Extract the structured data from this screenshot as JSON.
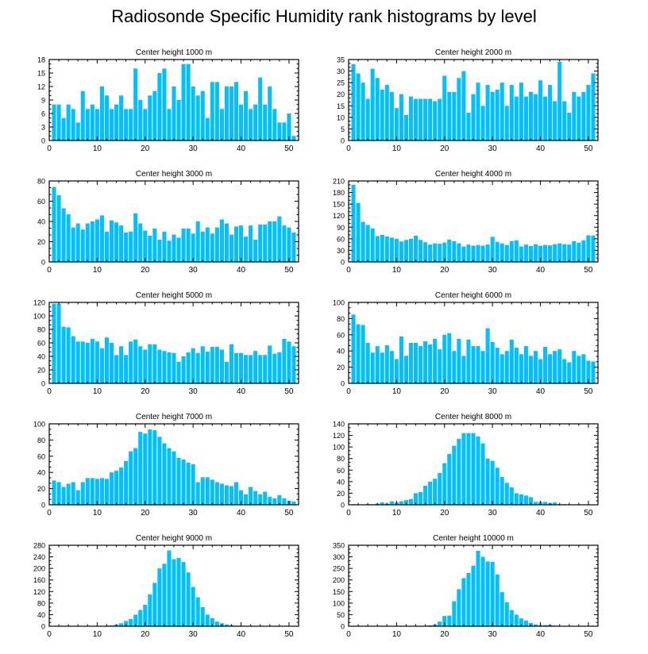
{
  "page_title": "Radiosonde Specific Humidity rank histograms by level",
  "colors": {
    "bar": "#00c0ff",
    "axis": "#000000",
    "background": "#ffffff"
  },
  "chart_data": [
    {
      "type": "bar",
      "title": "Center height 1000 m",
      "x": [
        1,
        2,
        3,
        4,
        5,
        6,
        7,
        8,
        9,
        10,
        11,
        12,
        13,
        14,
        15,
        16,
        17,
        18,
        19,
        20,
        21,
        22,
        23,
        24,
        25,
        26,
        27,
        28,
        29,
        30,
        31,
        32,
        33,
        34,
        35,
        36,
        37,
        38,
        39,
        40,
        41,
        42,
        43,
        44,
        45,
        46,
        47,
        48,
        49,
        50,
        51
      ],
      "values": [
        8,
        8,
        5,
        8,
        7,
        4,
        11,
        7,
        8,
        7,
        12,
        10,
        7,
        8,
        10,
        7,
        7,
        16,
        9,
        7,
        10,
        11,
        15,
        16,
        7,
        12,
        9,
        17,
        17,
        12,
        10,
        11,
        5,
        13,
        13,
        7,
        12,
        12,
        13,
        8,
        11,
        7,
        8,
        14,
        8,
        12,
        7,
        4,
        4,
        6,
        1
      ],
      "xlim": [
        0,
        52
      ],
      "ylim": [
        0,
        18
      ],
      "xticks": [
        0,
        10,
        20,
        30,
        40,
        50
      ],
      "yticks": [
        0,
        3,
        6,
        9,
        12,
        15,
        18
      ]
    },
    {
      "type": "bar",
      "title": "Center height 2000 m",
      "x": [
        1,
        2,
        3,
        4,
        5,
        6,
        7,
        8,
        9,
        10,
        11,
        12,
        13,
        14,
        15,
        16,
        17,
        18,
        19,
        20,
        21,
        22,
        23,
        24,
        25,
        26,
        27,
        28,
        29,
        30,
        31,
        32,
        33,
        34,
        35,
        36,
        37,
        38,
        39,
        40,
        41,
        42,
        43,
        44,
        45,
        46,
        47,
        48,
        49,
        50,
        51
      ],
      "values": [
        33,
        29,
        25,
        18,
        31,
        27,
        22,
        24,
        21,
        14,
        20,
        11,
        19,
        18,
        18,
        18,
        18,
        17,
        18,
        28,
        21,
        21,
        27,
        30,
        12,
        20,
        25,
        15,
        24,
        21,
        22,
        25,
        15,
        24,
        19,
        25,
        19,
        21,
        20,
        26,
        19,
        24,
        17,
        34,
        17,
        12,
        21,
        19,
        21,
        24,
        29
      ],
      "xlim": [
        0,
        52
      ],
      "ylim": [
        0,
        35
      ],
      "xticks": [
        0,
        10,
        20,
        30,
        40,
        50
      ],
      "yticks": [
        0,
        5,
        10,
        15,
        20,
        25,
        30,
        35
      ]
    },
    {
      "type": "bar",
      "title": "Center height 3000 m",
      "x": [
        1,
        2,
        3,
        4,
        5,
        6,
        7,
        8,
        9,
        10,
        11,
        12,
        13,
        14,
        15,
        16,
        17,
        18,
        19,
        20,
        21,
        22,
        23,
        24,
        25,
        26,
        27,
        28,
        29,
        30,
        31,
        32,
        33,
        34,
        35,
        36,
        37,
        38,
        39,
        40,
        41,
        42,
        43,
        44,
        45,
        46,
        47,
        48,
        49,
        50,
        51
      ],
      "values": [
        74,
        66,
        53,
        47,
        34,
        38,
        32,
        38,
        40,
        42,
        46,
        30,
        41,
        39,
        36,
        29,
        30,
        48,
        38,
        31,
        26,
        33,
        22,
        30,
        21,
        27,
        24,
        33,
        33,
        28,
        40,
        30,
        34,
        28,
        34,
        42,
        38,
        27,
        35,
        36,
        25,
        36,
        22,
        37,
        37,
        40,
        40,
        45,
        36,
        34,
        29
      ],
      "xlim": [
        0,
        52
      ],
      "ylim": [
        0,
        80
      ],
      "xticks": [
        0,
        10,
        20,
        30,
        40,
        50
      ],
      "yticks": [
        0,
        20,
        40,
        60,
        80
      ]
    },
    {
      "type": "bar",
      "title": "Center height 4000 m",
      "x": [
        1,
        2,
        3,
        4,
        5,
        6,
        7,
        8,
        9,
        10,
        11,
        12,
        13,
        14,
        15,
        16,
        17,
        18,
        19,
        20,
        21,
        22,
        23,
        24,
        25,
        26,
        27,
        28,
        29,
        30,
        31,
        32,
        33,
        34,
        35,
        36,
        37,
        38,
        39,
        40,
        41,
        42,
        43,
        44,
        45,
        46,
        47,
        48,
        49,
        50,
        51
      ],
      "values": [
        200,
        153,
        104,
        96,
        87,
        67,
        70,
        66,
        63,
        60,
        53,
        57,
        60,
        68,
        57,
        51,
        45,
        48,
        47,
        50,
        58,
        54,
        48,
        40,
        45,
        42,
        44,
        42,
        45,
        65,
        52,
        48,
        44,
        54,
        56,
        40,
        45,
        41,
        46,
        42,
        44,
        43,
        46,
        48,
        46,
        45,
        54,
        50,
        56,
        69,
        68
      ],
      "xlim": [
        0,
        52
      ],
      "ylim": [
        0,
        210
      ],
      "xticks": [
        0,
        10,
        20,
        30,
        40,
        50
      ],
      "yticks": [
        0,
        30,
        60,
        90,
        120,
        150,
        180,
        210
      ]
    },
    {
      "type": "bar",
      "title": "Center height 5000 m",
      "x": [
        1,
        2,
        3,
        4,
        5,
        6,
        7,
        8,
        9,
        10,
        11,
        12,
        13,
        14,
        15,
        16,
        17,
        18,
        19,
        20,
        21,
        22,
        23,
        24,
        25,
        26,
        27,
        28,
        29,
        30,
        31,
        32,
        33,
        34,
        35,
        36,
        37,
        38,
        39,
        40,
        41,
        42,
        43,
        44,
        45,
        46,
        47,
        48,
        49,
        50,
        51
      ],
      "values": [
        118,
        118,
        84,
        83,
        70,
        62,
        62,
        60,
        66,
        62,
        52,
        68,
        60,
        42,
        55,
        42,
        62,
        65,
        55,
        50,
        58,
        58,
        50,
        48,
        46,
        45,
        32,
        40,
        46,
        52,
        45,
        55,
        47,
        54,
        54,
        50,
        32,
        58,
        45,
        45,
        42,
        42,
        48,
        42,
        42,
        56,
        44,
        46,
        66,
        62,
        55
      ],
      "xlim": [
        0,
        52
      ],
      "ylim": [
        0,
        120
      ],
      "xticks": [
        0,
        10,
        20,
        30,
        40,
        50
      ],
      "yticks": [
        0,
        20,
        40,
        60,
        80,
        100,
        120
      ]
    },
    {
      "type": "bar",
      "title": "Center height 6000 m",
      "x": [
        1,
        2,
        3,
        4,
        5,
        6,
        7,
        8,
        9,
        10,
        11,
        12,
        13,
        14,
        15,
        16,
        17,
        18,
        19,
        20,
        21,
        22,
        23,
        24,
        25,
        26,
        27,
        28,
        29,
        30,
        31,
        32,
        33,
        34,
        35,
        36,
        37,
        38,
        39,
        40,
        41,
        42,
        43,
        44,
        45,
        46,
        47,
        48,
        49,
        50,
        51
      ],
      "values": [
        85,
        73,
        72,
        50,
        38,
        46,
        38,
        47,
        40,
        30,
        58,
        34,
        50,
        50,
        46,
        52,
        48,
        55,
        42,
        60,
        62,
        40,
        55,
        34,
        54,
        46,
        46,
        40,
        68,
        51,
        44,
        36,
        40,
        54,
        44,
        36,
        46,
        34,
        40,
        30,
        45,
        36,
        40,
        42,
        30,
        26,
        40,
        34,
        36,
        28,
        27
      ],
      "xlim": [
        0,
        52
      ],
      "ylim": [
        0,
        100
      ],
      "xticks": [
        0,
        10,
        20,
        30,
        40,
        50
      ],
      "yticks": [
        0,
        20,
        40,
        60,
        80,
        100
      ]
    },
    {
      "type": "bar",
      "title": "Center height 7000 m",
      "x": [
        1,
        2,
        3,
        4,
        5,
        6,
        7,
        8,
        9,
        10,
        11,
        12,
        13,
        14,
        15,
        16,
        17,
        18,
        19,
        20,
        21,
        22,
        23,
        24,
        25,
        26,
        27,
        28,
        29,
        30,
        31,
        32,
        33,
        34,
        35,
        36,
        37,
        38,
        39,
        40,
        41,
        42,
        43,
        44,
        45,
        46,
        47,
        48,
        49,
        50,
        51
      ],
      "values": [
        30,
        28,
        22,
        26,
        28,
        18,
        28,
        33,
        33,
        32,
        33,
        32,
        40,
        42,
        46,
        54,
        66,
        70,
        90,
        88,
        93,
        92,
        84,
        76,
        70,
        66,
        58,
        56,
        52,
        50,
        28,
        34,
        34,
        31,
        28,
        26,
        24,
        23,
        28,
        18,
        13,
        22,
        17,
        13,
        16,
        10,
        8,
        12,
        8,
        5,
        4
      ],
      "xlim": [
        0,
        52
      ],
      "ylim": [
        0,
        100
      ],
      "xticks": [
        0,
        10,
        20,
        30,
        40,
        50
      ],
      "yticks": [
        0,
        20,
        40,
        60,
        80,
        100
      ]
    },
    {
      "type": "bar",
      "title": "Center height 8000 m",
      "x": [
        1,
        2,
        3,
        4,
        5,
        6,
        7,
        8,
        9,
        10,
        11,
        12,
        13,
        14,
        15,
        16,
        17,
        18,
        19,
        20,
        21,
        22,
        23,
        24,
        25,
        26,
        27,
        28,
        29,
        30,
        31,
        32,
        33,
        34,
        35,
        36,
        37,
        38,
        39,
        40,
        41,
        42,
        43,
        44,
        45,
        46,
        47,
        48,
        49,
        50,
        51
      ],
      "values": [
        1,
        0,
        0,
        1,
        1,
        2,
        4,
        2,
        6,
        4,
        6,
        8,
        10,
        20,
        22,
        33,
        40,
        45,
        55,
        72,
        88,
        102,
        114,
        124,
        124,
        124,
        118,
        106,
        80,
        76,
        64,
        48,
        38,
        30,
        20,
        18,
        16,
        13,
        5,
        5,
        5,
        3,
        4,
        1,
        1,
        0,
        0,
        0,
        0,
        0,
        0
      ],
      "xlim": [
        0,
        52
      ],
      "ylim": [
        0,
        140
      ],
      "xticks": [
        0,
        10,
        20,
        30,
        40,
        50
      ],
      "yticks": [
        0,
        20,
        40,
        60,
        80,
        100,
        120,
        140
      ]
    },
    {
      "type": "bar",
      "title": "Center height 9000 m",
      "x": [
        1,
        2,
        3,
        4,
        5,
        6,
        7,
        8,
        9,
        10,
        11,
        12,
        13,
        14,
        15,
        16,
        17,
        18,
        19,
        20,
        21,
        22,
        23,
        24,
        25,
        26,
        27,
        28,
        29,
        30,
        31,
        32,
        33,
        34,
        35,
        36,
        37,
        38,
        39,
        40,
        41,
        42,
        43,
        44,
        45,
        46,
        47,
        48,
        49,
        50,
        51
      ],
      "values": [
        0,
        0,
        0,
        0,
        0,
        0,
        0,
        0,
        0,
        0,
        0,
        2,
        3,
        6,
        10,
        18,
        25,
        40,
        56,
        74,
        110,
        150,
        200,
        216,
        262,
        232,
        236,
        222,
        186,
        136,
        100,
        66,
        40,
        28,
        16,
        10,
        6,
        4,
        2,
        2,
        1,
        1,
        0,
        0,
        1,
        0,
        1,
        0,
        0,
        0,
        0
      ],
      "xlim": [
        0,
        52
      ],
      "ylim": [
        0,
        280
      ],
      "xticks": [
        0,
        10,
        20,
        30,
        40,
        50
      ],
      "yticks": [
        0,
        40,
        80,
        120,
        160,
        200,
        240,
        280
      ]
    },
    {
      "type": "bar",
      "title": "Center height 10000 m",
      "x": [
        1,
        2,
        3,
        4,
        5,
        6,
        7,
        8,
        9,
        10,
        11,
        12,
        13,
        14,
        15,
        16,
        17,
        18,
        19,
        20,
        21,
        22,
        23,
        24,
        25,
        26,
        27,
        28,
        29,
        30,
        31,
        32,
        33,
        34,
        35,
        36,
        37,
        38,
        39,
        40,
        41,
        42,
        43,
        44,
        45,
        46,
        47,
        48,
        49,
        50,
        51
      ],
      "values": [
        0,
        0,
        0,
        0,
        0,
        0,
        0,
        0,
        0,
        0,
        0,
        0,
        0,
        0,
        0,
        0,
        4,
        8,
        20,
        44,
        46,
        108,
        160,
        208,
        230,
        262,
        326,
        300,
        280,
        278,
        224,
        148,
        104,
        70,
        50,
        34,
        24,
        14,
        8,
        5,
        5,
        6,
        3,
        1,
        0,
        0,
        0,
        0,
        0,
        0,
        0
      ],
      "xlim": [
        0,
        52
      ],
      "ylim": [
        0,
        350
      ],
      "xticks": [
        0,
        10,
        20,
        30,
        40,
        50
      ],
      "yticks": [
        0,
        50,
        100,
        150,
        200,
        250,
        300,
        350
      ]
    }
  ]
}
